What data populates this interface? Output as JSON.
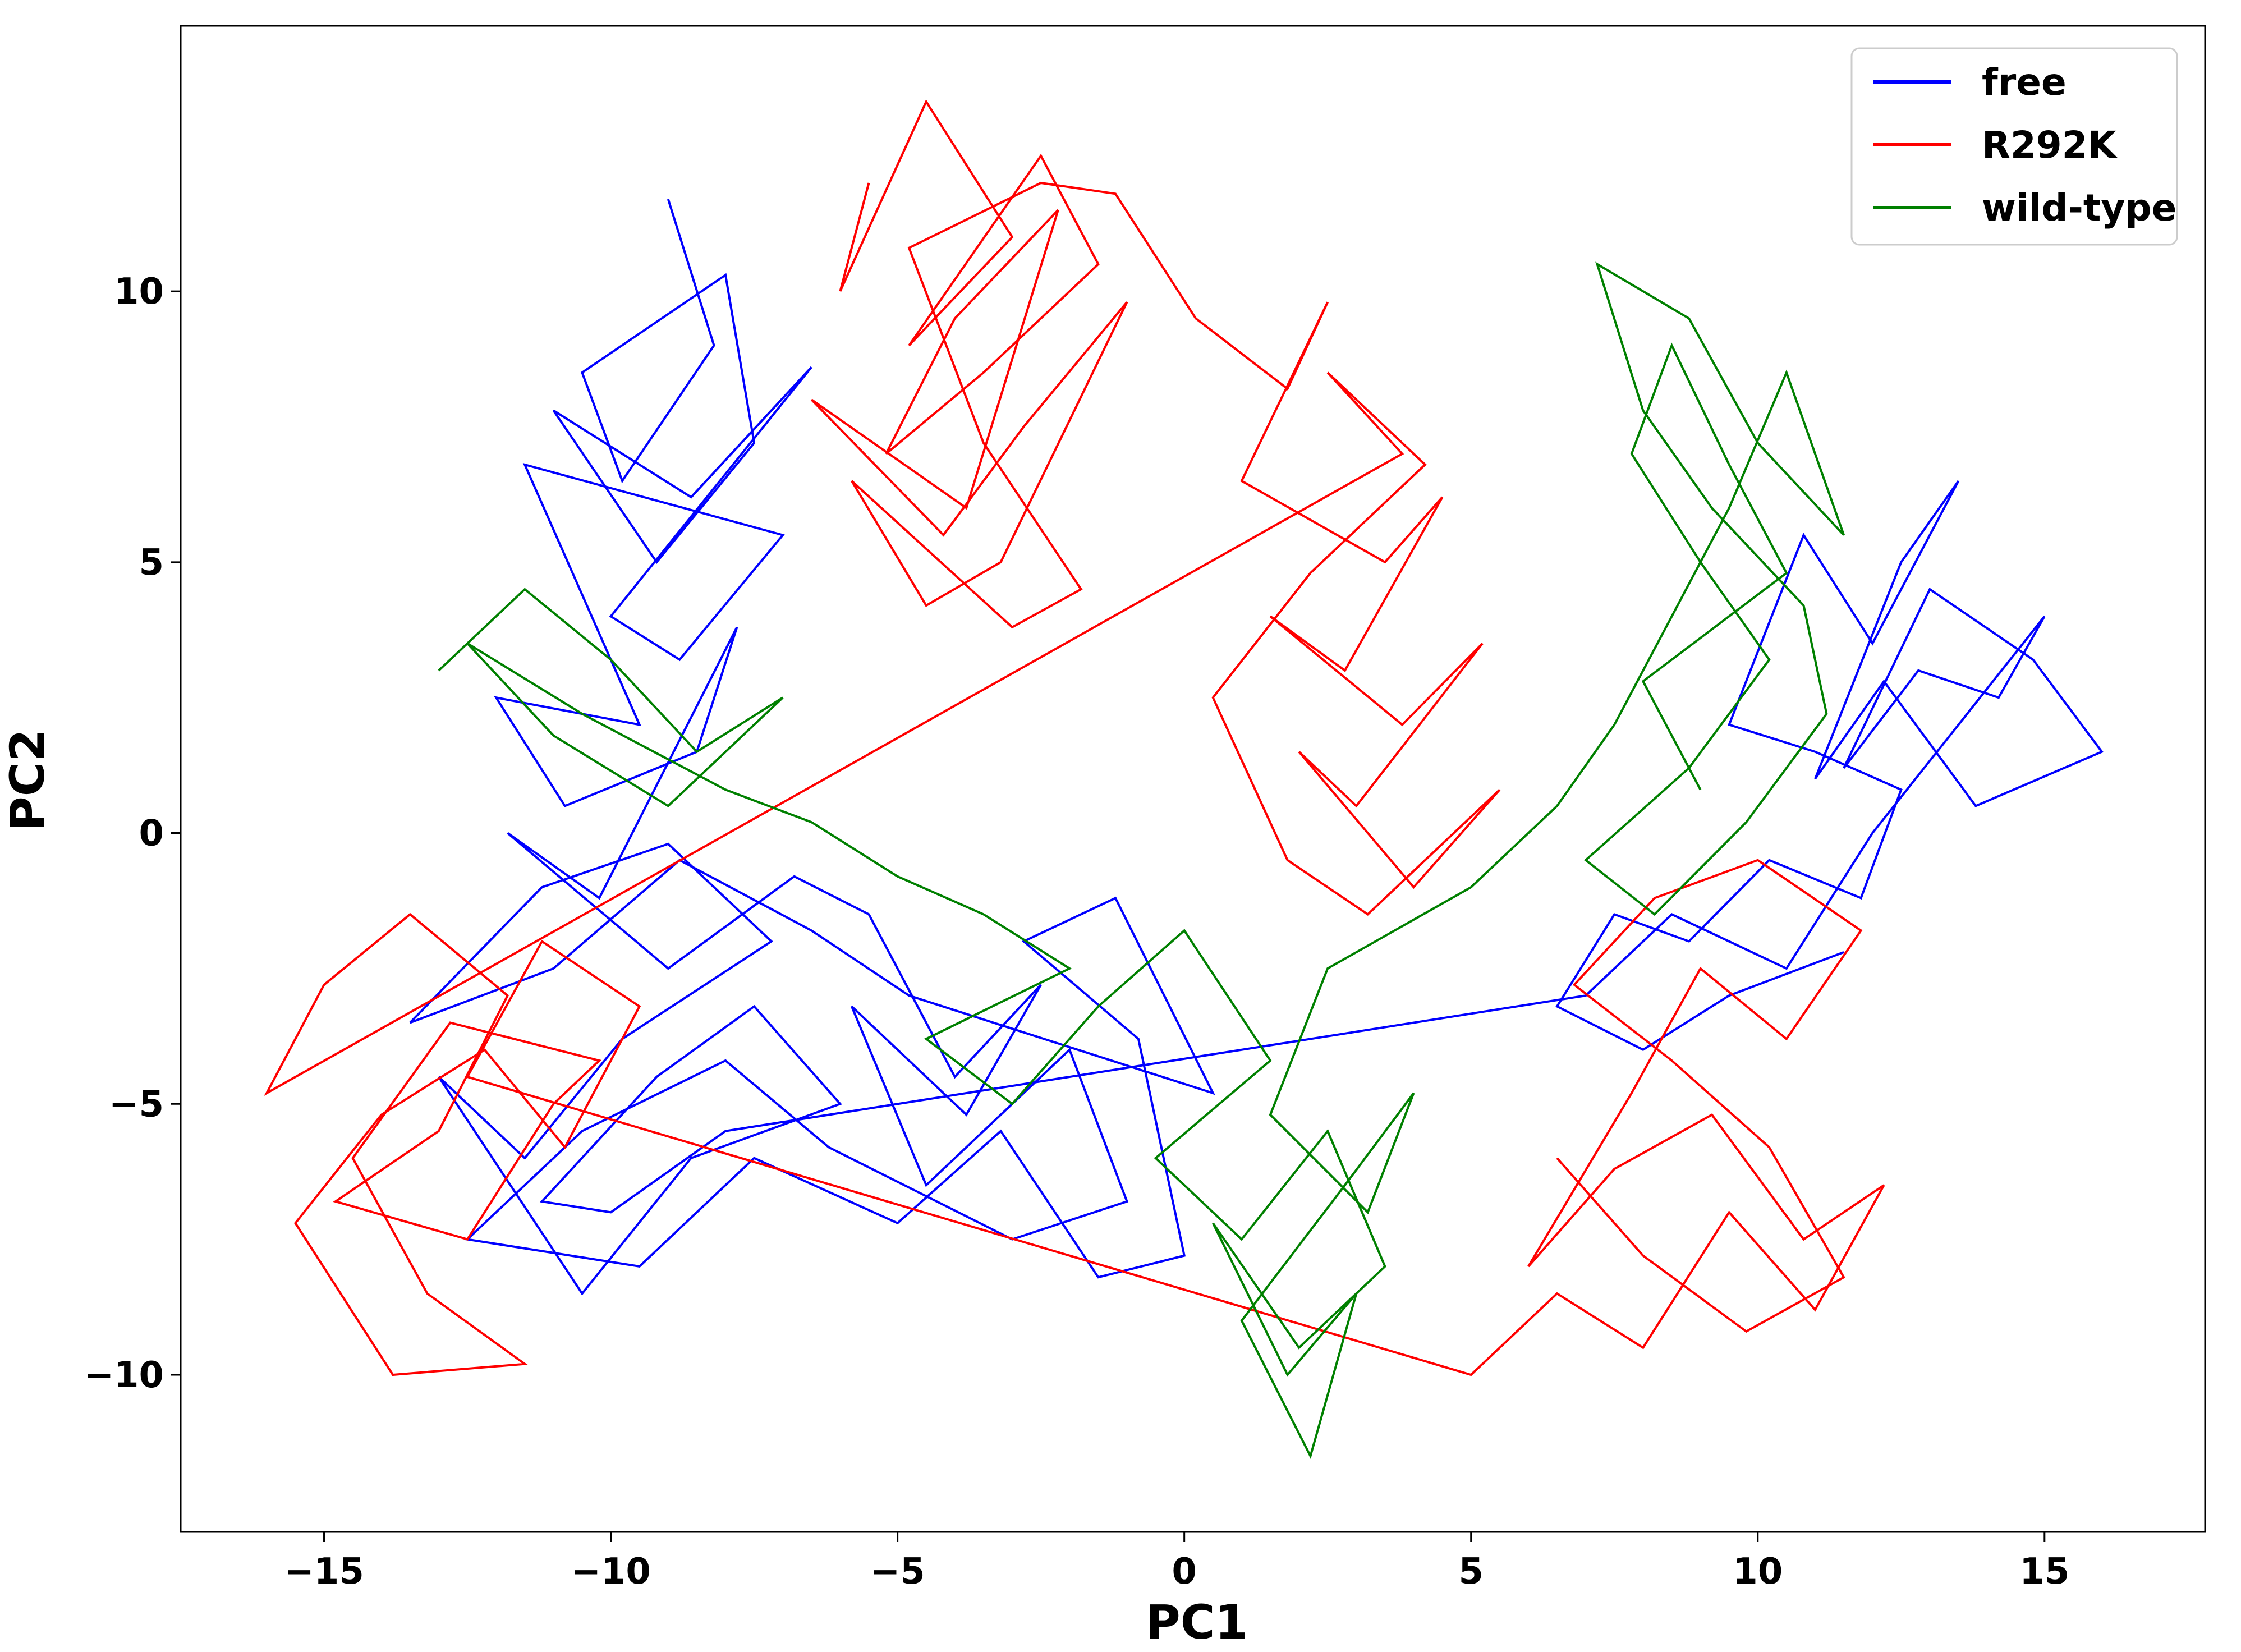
{
  "chart_data": {
    "type": "line",
    "title": "",
    "xlabel": "PC1",
    "ylabel": "PC2",
    "xlim": [
      -17.5,
      17.8
    ],
    "ylim": [
      -12.9,
      14.9
    ],
    "xticks": [
      -15,
      -10,
      -5,
      0,
      5,
      10,
      15
    ],
    "yticks": [
      -10,
      -5,
      0,
      5,
      10
    ],
    "xtick_labels": [
      "−15",
      "−10",
      "−5",
      "0",
      "5",
      "10",
      "15"
    ],
    "ytick_labels": [
      "−10",
      "−5",
      "0",
      "5",
      "10"
    ],
    "grid": false,
    "legend_position": "top-right",
    "series": [
      {
        "name": "free",
        "color": "#0000ff",
        "x": [
          -9.0,
          -8.2,
          -9.8,
          -10.5,
          -8.0,
          -7.5,
          -9.2,
          -11.0,
          -8.6,
          -6.5,
          -10.0,
          -8.8,
          -7.0,
          -11.5,
          -9.5,
          -12.0,
          -10.8,
          -8.5,
          -7.8,
          -10.2,
          -11.8,
          -9.0,
          -6.8,
          -5.5,
          -4.0,
          -2.5,
          -3.8,
          -5.8,
          -4.5,
          -2.0,
          -1.0,
          -3.0,
          -6.2,
          -8.0,
          -10.5,
          -12.5,
          -9.5,
          -7.5,
          -5.0,
          -3.2,
          -1.5,
          0.0,
          -0.8,
          -2.8,
          -1.2,
          0.5,
          -4.8,
          -6.5,
          -8.8,
          -11.0,
          -13.5,
          -11.2,
          -9.0,
          -7.2,
          -9.8,
          -11.5,
          -13.0,
          -10.5,
          -8.6,
          -6.0,
          -7.5,
          -9.2,
          -11.2,
          -10.0,
          -8.0,
          7.0,
          8.5,
          10.5,
          12.0,
          13.5,
          15.0,
          14.2,
          12.8,
          11.5,
          13.0,
          14.8,
          16.0,
          13.8,
          12.2,
          11.0,
          12.5,
          13.5,
          12.0,
          10.8,
          9.5,
          11.0,
          12.5,
          11.8,
          10.2,
          8.8,
          7.5,
          6.5,
          8.0,
          9.5,
          11.5
        ],
        "y": [
          11.7,
          9.0,
          6.5,
          8.5,
          10.3,
          7.2,
          5.0,
          7.8,
          6.2,
          8.6,
          4.0,
          3.2,
          5.5,
          6.8,
          2.0,
          2.5,
          0.5,
          1.5,
          3.8,
          -1.2,
          0.0,
          -2.5,
          -0.8,
          -1.5,
          -4.5,
          -2.8,
          -5.2,
          -3.2,
          -6.5,
          -4.0,
          -6.8,
          -7.5,
          -5.8,
          -4.2,
          -5.5,
          -7.5,
          -8.0,
          -6.0,
          -7.2,
          -5.5,
          -8.2,
          -7.8,
          -3.8,
          -2.0,
          -1.2,
          -4.8,
          -3.0,
          -1.8,
          -0.5,
          -2.5,
          -3.5,
          -1.0,
          -0.2,
          -2.0,
          -3.8,
          -6.0,
          -4.5,
          -8.5,
          -6.0,
          -5.0,
          -3.2,
          -4.5,
          -6.8,
          -7.0,
          -5.5,
          -3.0,
          -1.5,
          -2.5,
          0.0,
          2.0,
          4.0,
          2.5,
          3.0,
          1.2,
          4.5,
          3.2,
          1.5,
          0.5,
          2.8,
          1.0,
          5.0,
          6.5,
          3.5,
          5.5,
          2.0,
          1.5,
          0.8,
          -1.2,
          -0.5,
          -2.0,
          -1.5,
          -3.2,
          -4.0,
          -3.0,
          -2.2
        ]
      },
      {
        "name": "R292K",
        "color": "#ff0000",
        "x": [
          -5.5,
          -6.0,
          -4.5,
          -3.0,
          -4.8,
          -2.5,
          -1.5,
          -3.5,
          -5.2,
          -4.0,
          -2.2,
          -3.8,
          -6.5,
          -4.2,
          -2.8,
          -1.0,
          -3.2,
          -4.5,
          -5.8,
          -3.0,
          -1.8,
          -3.5,
          -4.8,
          -2.5,
          -1.2,
          0.2,
          1.8,
          2.5,
          1.0,
          3.5,
          4.5,
          2.8,
          1.5,
          3.8,
          5.2,
          3.0,
          2.0,
          4.0,
          5.5,
          3.2,
          1.8,
          0.5,
          2.2,
          4.2,
          2.5,
          3.8,
          -16.0,
          -15.0,
          -13.5,
          -11.8,
          -13.0,
          -14.8,
          -12.5,
          -11.0,
          -10.2,
          -12.8,
          -14.5,
          -13.2,
          -11.5,
          -13.8,
          -15.5,
          -14.0,
          -12.2,
          -10.8,
          -9.5,
          -11.2,
          -12.5,
          5.0,
          6.5,
          8.0,
          9.5,
          11.0,
          12.2,
          10.8,
          9.2,
          7.5,
          6.0,
          7.8,
          9.0,
          10.5,
          11.8,
          10.0,
          8.2,
          6.8,
          8.5,
          10.2,
          11.5,
          9.8,
          8.0,
          6.5
        ],
        "y": [
          12.0,
          10.0,
          13.5,
          11.0,
          9.0,
          12.5,
          10.5,
          8.5,
          7.0,
          9.5,
          11.5,
          6.0,
          8.0,
          5.5,
          7.5,
          9.8,
          5.0,
          4.2,
          6.5,
          3.8,
          4.5,
          7.2,
          10.8,
          12.0,
          11.8,
          9.5,
          8.2,
          9.8,
          6.5,
          5.0,
          6.2,
          3.0,
          4.0,
          2.0,
          3.5,
          0.5,
          1.5,
          -1.0,
          0.8,
          -1.5,
          -0.5,
          2.5,
          4.8,
          6.8,
          8.5,
          7.0,
          -4.8,
          -2.8,
          -1.5,
          -3.0,
          -5.5,
          -6.8,
          -7.5,
          -5.0,
          -4.2,
          -3.5,
          -6.0,
          -8.5,
          -9.8,
          -10.0,
          -7.2,
          -5.2,
          -4.0,
          -5.8,
          -3.2,
          -2.0,
          -4.5,
          -10.0,
          -8.5,
          -9.5,
          -7.0,
          -8.8,
          -6.5,
          -7.5,
          -5.2,
          -6.2,
          -8.0,
          -4.8,
          -2.5,
          -3.8,
          -1.8,
          -0.5,
          -1.2,
          -2.8,
          -4.2,
          -5.8,
          -8.2,
          -9.2,
          -7.8,
          -6.0
        ]
      },
      {
        "name": "wild-type",
        "color": "#008000",
        "x": [
          -13.0,
          -11.5,
          -10.0,
          -8.5,
          -7.0,
          -9.0,
          -11.0,
          -12.5,
          -10.5,
          -8.0,
          -6.5,
          -5.0,
          -3.5,
          -2.0,
          -4.5,
          -3.0,
          -1.5,
          0.0,
          1.5,
          -0.5,
          1.0,
          2.5,
          3.5,
          2.0,
          0.5,
          1.8,
          3.0,
          2.2,
          1.0,
          2.8,
          4.0,
          3.2,
          1.5,
          2.5,
          5.0,
          6.5,
          7.5,
          8.5,
          9.5,
          10.5,
          11.5,
          10.0,
          8.8,
          7.2,
          8.0,
          9.2,
          10.8,
          11.2,
          9.8,
          8.2,
          7.0,
          8.8,
          10.2,
          9.0,
          7.8,
          8.5,
          9.5,
          10.5,
          8.0,
          9.0
        ],
        "y": [
          3.0,
          4.5,
          3.2,
          1.5,
          2.5,
          0.5,
          1.8,
          3.5,
          2.2,
          0.8,
          0.2,
          -0.8,
          -1.5,
          -2.5,
          -3.8,
          -5.0,
          -3.2,
          -1.8,
          -4.2,
          -6.0,
          -7.5,
          -5.5,
          -8.0,
          -9.5,
          -7.2,
          -10.0,
          -8.5,
          -11.5,
          -9.0,
          -6.5,
          -4.8,
          -7.0,
          -5.2,
          -2.5,
          -1.0,
          0.5,
          2.0,
          4.0,
          6.0,
          8.5,
          5.5,
          7.2,
          9.5,
          10.5,
          7.8,
          6.0,
          4.2,
          2.2,
          0.2,
          -1.5,
          -0.5,
          1.2,
          3.2,
          5.0,
          7.0,
          9.0,
          6.8,
          4.8,
          2.8,
          0.8
        ]
      }
    ]
  }
}
